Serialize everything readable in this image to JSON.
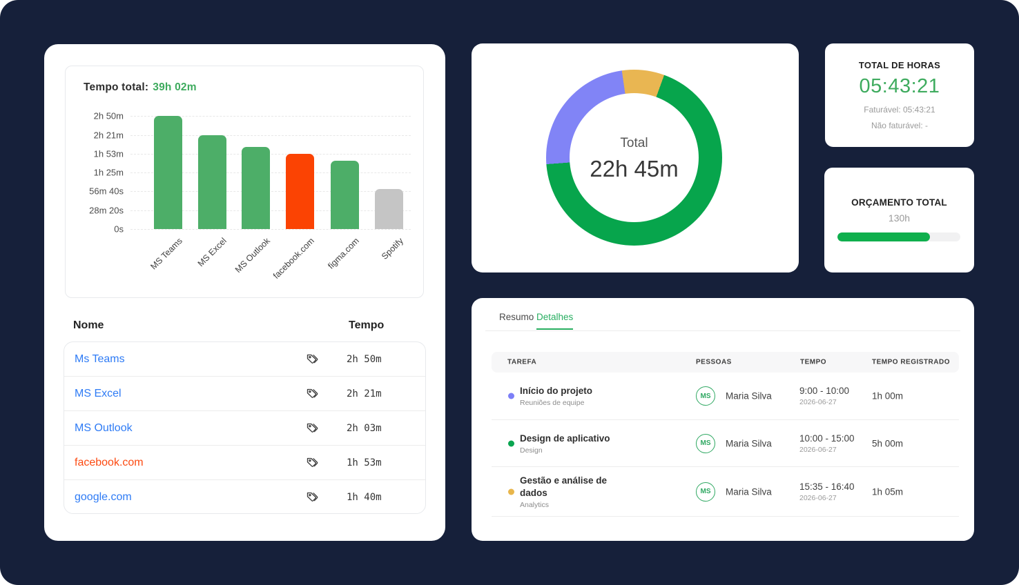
{
  "page": {
    "background": "#16203A"
  },
  "chart_data": [
    {
      "type": "bar",
      "title": "Tempo total:",
      "total_value": "39h 02m",
      "categories": [
        "MS Teams",
        "MS Excel",
        "MS Outlook",
        "facebook.com",
        "figma.com",
        "Spotify"
      ],
      "values_seconds": [
        10200,
        8460,
        7380,
        6780,
        6180,
        3620
      ],
      "bar_colors": [
        "#4dae68",
        "#4dae68",
        "#4dae68",
        "#fb4303",
        "#4dae68",
        "#c5c5c5"
      ],
      "y_ticks": [
        "0s",
        "28m 20s",
        "56m 40s",
        "1h 25m",
        "1h 53m",
        "2h 21m",
        "2h 50m"
      ],
      "ylim_seconds": [
        0,
        10200
      ],
      "grid": "dashed horizontal",
      "legend": "none"
    },
    {
      "type": "donut",
      "center_label": "Total",
      "center_value": "22h 45m",
      "start_angle_deg": -8,
      "segments": [
        {
          "name": "yellow-segment",
          "color": "#e9b652",
          "sweep_deg": 28,
          "percent": 7.8
        },
        {
          "name": "green-segment",
          "color": "#07a54c",
          "sweep_deg": 245.7,
          "percent": 68.2
        },
        {
          "name": "purple-segment",
          "color": "#8184f6",
          "sweep_deg": 86.3,
          "percent": 24.0
        }
      ]
    }
  ],
  "left_panel": {
    "list": {
      "name_header": "Nome",
      "time_header": "Tempo",
      "row_icon": "tags-icon",
      "rows": [
        {
          "name": "Ms Teams",
          "color": "#2e7bf5",
          "time": "2h 50m"
        },
        {
          "name": "MS Excel",
          "color": "#2e7bf5",
          "time": "2h 21m"
        },
        {
          "name": "MS Outlook",
          "color": "#2e7bf5",
          "time": "2h 03m"
        },
        {
          "name": "facebook.com",
          "color": "#fc4a11",
          "time": "1h 53m"
        },
        {
          "name": "google.com",
          "color": "#2e7bf5",
          "time": "1h 40m"
        }
      ]
    }
  },
  "hours_card": {
    "title": "TOTAL DE HORAS",
    "time": "05:43:21",
    "billable_line": "Faturável: 05:43:21",
    "non_billable_line": "Não faturável: -"
  },
  "budget_card": {
    "title": "ORÇAMENTO TOTAL",
    "value": "130h",
    "progress_percent": 75
  },
  "details_panel": {
    "tabs": [
      {
        "label": "Resumo",
        "active": false
      },
      {
        "label": "Detalhes",
        "active": true
      }
    ],
    "columns": [
      "TAREFA",
      "PESSOAS",
      "TEMPO",
      "TEMPO REGISTRADO"
    ],
    "rows": [
      {
        "dot_color": "#7c7ff7",
        "task": "Início do projeto",
        "category": "Reuniões de equipe",
        "avatar": "MS",
        "person": "Maria Silva",
        "time_range": "9:00 - 10:00",
        "date": "2026-06-27",
        "registered": "1h 00m"
      },
      {
        "dot_color": "#0aa550",
        "task": "Design de aplicativo",
        "category": "Design",
        "avatar": "MS",
        "person": "Maria Silva",
        "time_range": "10:00 - 15:00",
        "date": "2026-06-27",
        "registered": "5h 00m"
      },
      {
        "dot_color": "#e8b64c",
        "task": "Gestão e análise de dados",
        "category": "Analytics",
        "avatar": "MS",
        "person": "Maria Silva",
        "time_range": "15:35 - 16:40",
        "date": "2026-06-27",
        "registered": "1h 05m"
      }
    ]
  }
}
